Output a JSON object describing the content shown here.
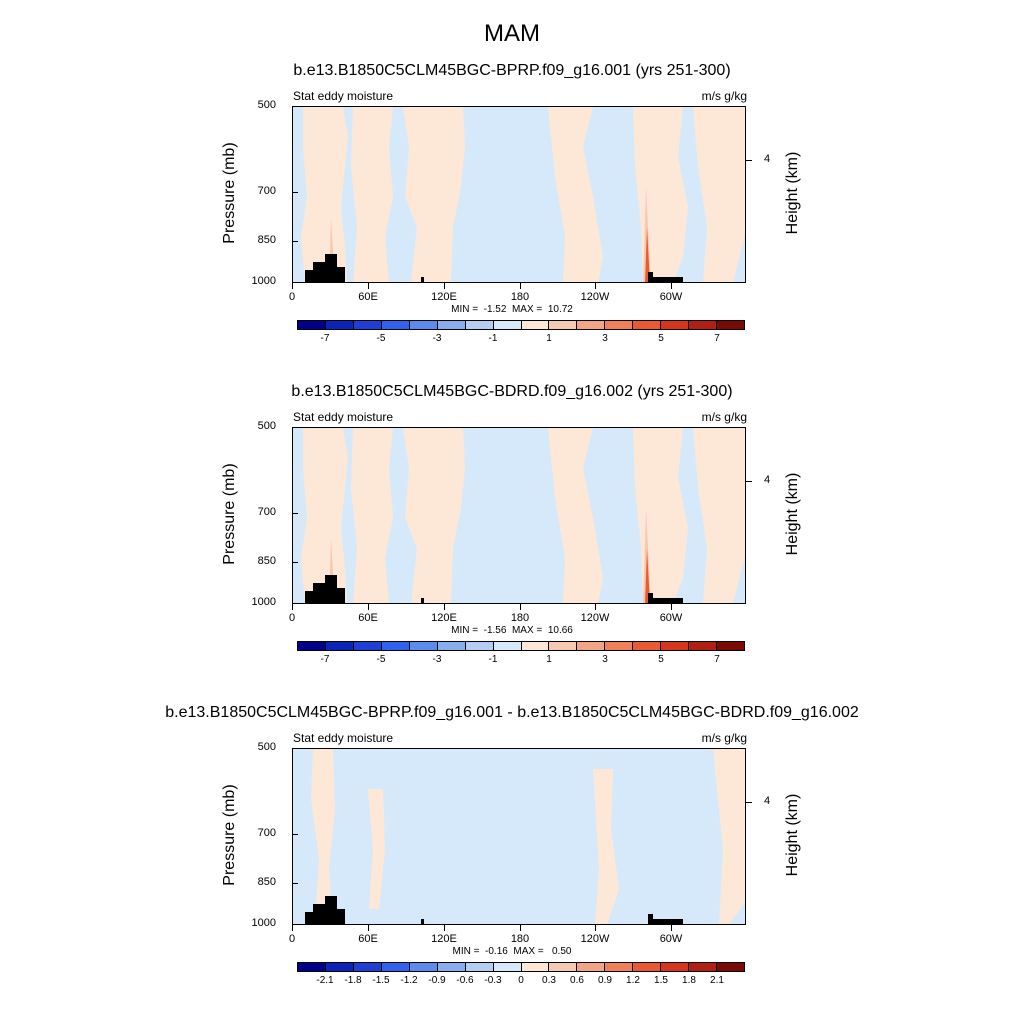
{
  "main_title": "MAM",
  "colors": {
    "main_palette": [
      "#00008b",
      "#0a23b8",
      "#1e3fd6",
      "#2f62ee",
      "#5a8cf0",
      "#88aef0",
      "#b4cdf3",
      "#d6e9fb",
      "#fde8d8",
      "#f6cab0",
      "#f3a583",
      "#f08055",
      "#ea5a32",
      "#d7351c",
      "#b01f12",
      "#7a0a05"
    ],
    "diff_palette": [
      "#00008b",
      "#0a23b8",
      "#1e3fd6",
      "#2f62ee",
      "#5a8cf0",
      "#88aef0",
      "#b4cdf3",
      "#d6e9fb",
      "#fde8d8",
      "#f6cab0",
      "#f3a583",
      "#f08055",
      "#ea5a32",
      "#d7351c",
      "#b01f12",
      "#7a0a05"
    ],
    "topography": "#000000"
  },
  "chart_data": [
    {
      "type": "heatmap",
      "title": "b.e13.B1850C5CLM45BGC-BPRP.f09_g16.001 (yrs 251-300)",
      "left_string": "Stat eddy moisture",
      "right_string": "m/s g/kg",
      "ylabel": "Pressure (mb)",
      "right_axis_label": "Height (km)",
      "right_ticks": [
        "4"
      ],
      "yticks": [
        "500",
        "700",
        "850",
        "1000"
      ],
      "xticks": [
        "0",
        "60E",
        "120E",
        "180",
        "120W",
        "60W"
      ],
      "stats": "MIN =  -1.52  MAX =  10.72",
      "colorbar_labels": [
        "-7",
        "-5",
        "-3",
        "-1",
        "1",
        "3",
        "5",
        "7"
      ],
      "zlim": [
        -8,
        8
      ]
    },
    {
      "type": "heatmap",
      "title": "b.e13.B1850C5CLM45BGC-BDRD.f09_g16.002 (yrs 251-300)",
      "left_string": "Stat eddy moisture",
      "right_string": "m/s g/kg",
      "ylabel": "Pressure (mb)",
      "right_axis_label": "Height (km)",
      "right_ticks": [
        "4"
      ],
      "yticks": [
        "500",
        "700",
        "850",
        "1000"
      ],
      "xticks": [
        "0",
        "60E",
        "120E",
        "180",
        "120W",
        "60W"
      ],
      "stats": "MIN =  -1.56  MAX =  10.66",
      "colorbar_labels": [
        "-7",
        "-5",
        "-3",
        "-1",
        "1",
        "3",
        "5",
        "7"
      ],
      "zlim": [
        -8,
        8
      ]
    },
    {
      "type": "heatmap",
      "title": "b.e13.B1850C5CLM45BGC-BPRP.f09_g16.001 - b.e13.B1850C5CLM45BGC-BDRD.f09_g16.002",
      "left_string": "Stat eddy moisture",
      "right_string": "m/s g/kg",
      "ylabel": "Pressure (mb)",
      "right_axis_label": "Height (km)",
      "right_ticks": [
        "4"
      ],
      "yticks": [
        "500",
        "700",
        "850",
        "1000"
      ],
      "xticks": [
        "0",
        "60E",
        "120E",
        "180",
        "120W",
        "60W"
      ],
      "stats": "MIN =  -0.16  MAX =   0.50",
      "colorbar_labels": [
        "-2.1",
        "-1.8",
        "-1.5",
        "-1.2",
        "-0.9",
        "-0.6",
        "-0.3",
        "0",
        "0.3",
        "0.6",
        "0.9",
        "1.2",
        "1.5",
        "1.8",
        "2.1"
      ],
      "zlim": [
        -2.4,
        2.4
      ]
    }
  ]
}
